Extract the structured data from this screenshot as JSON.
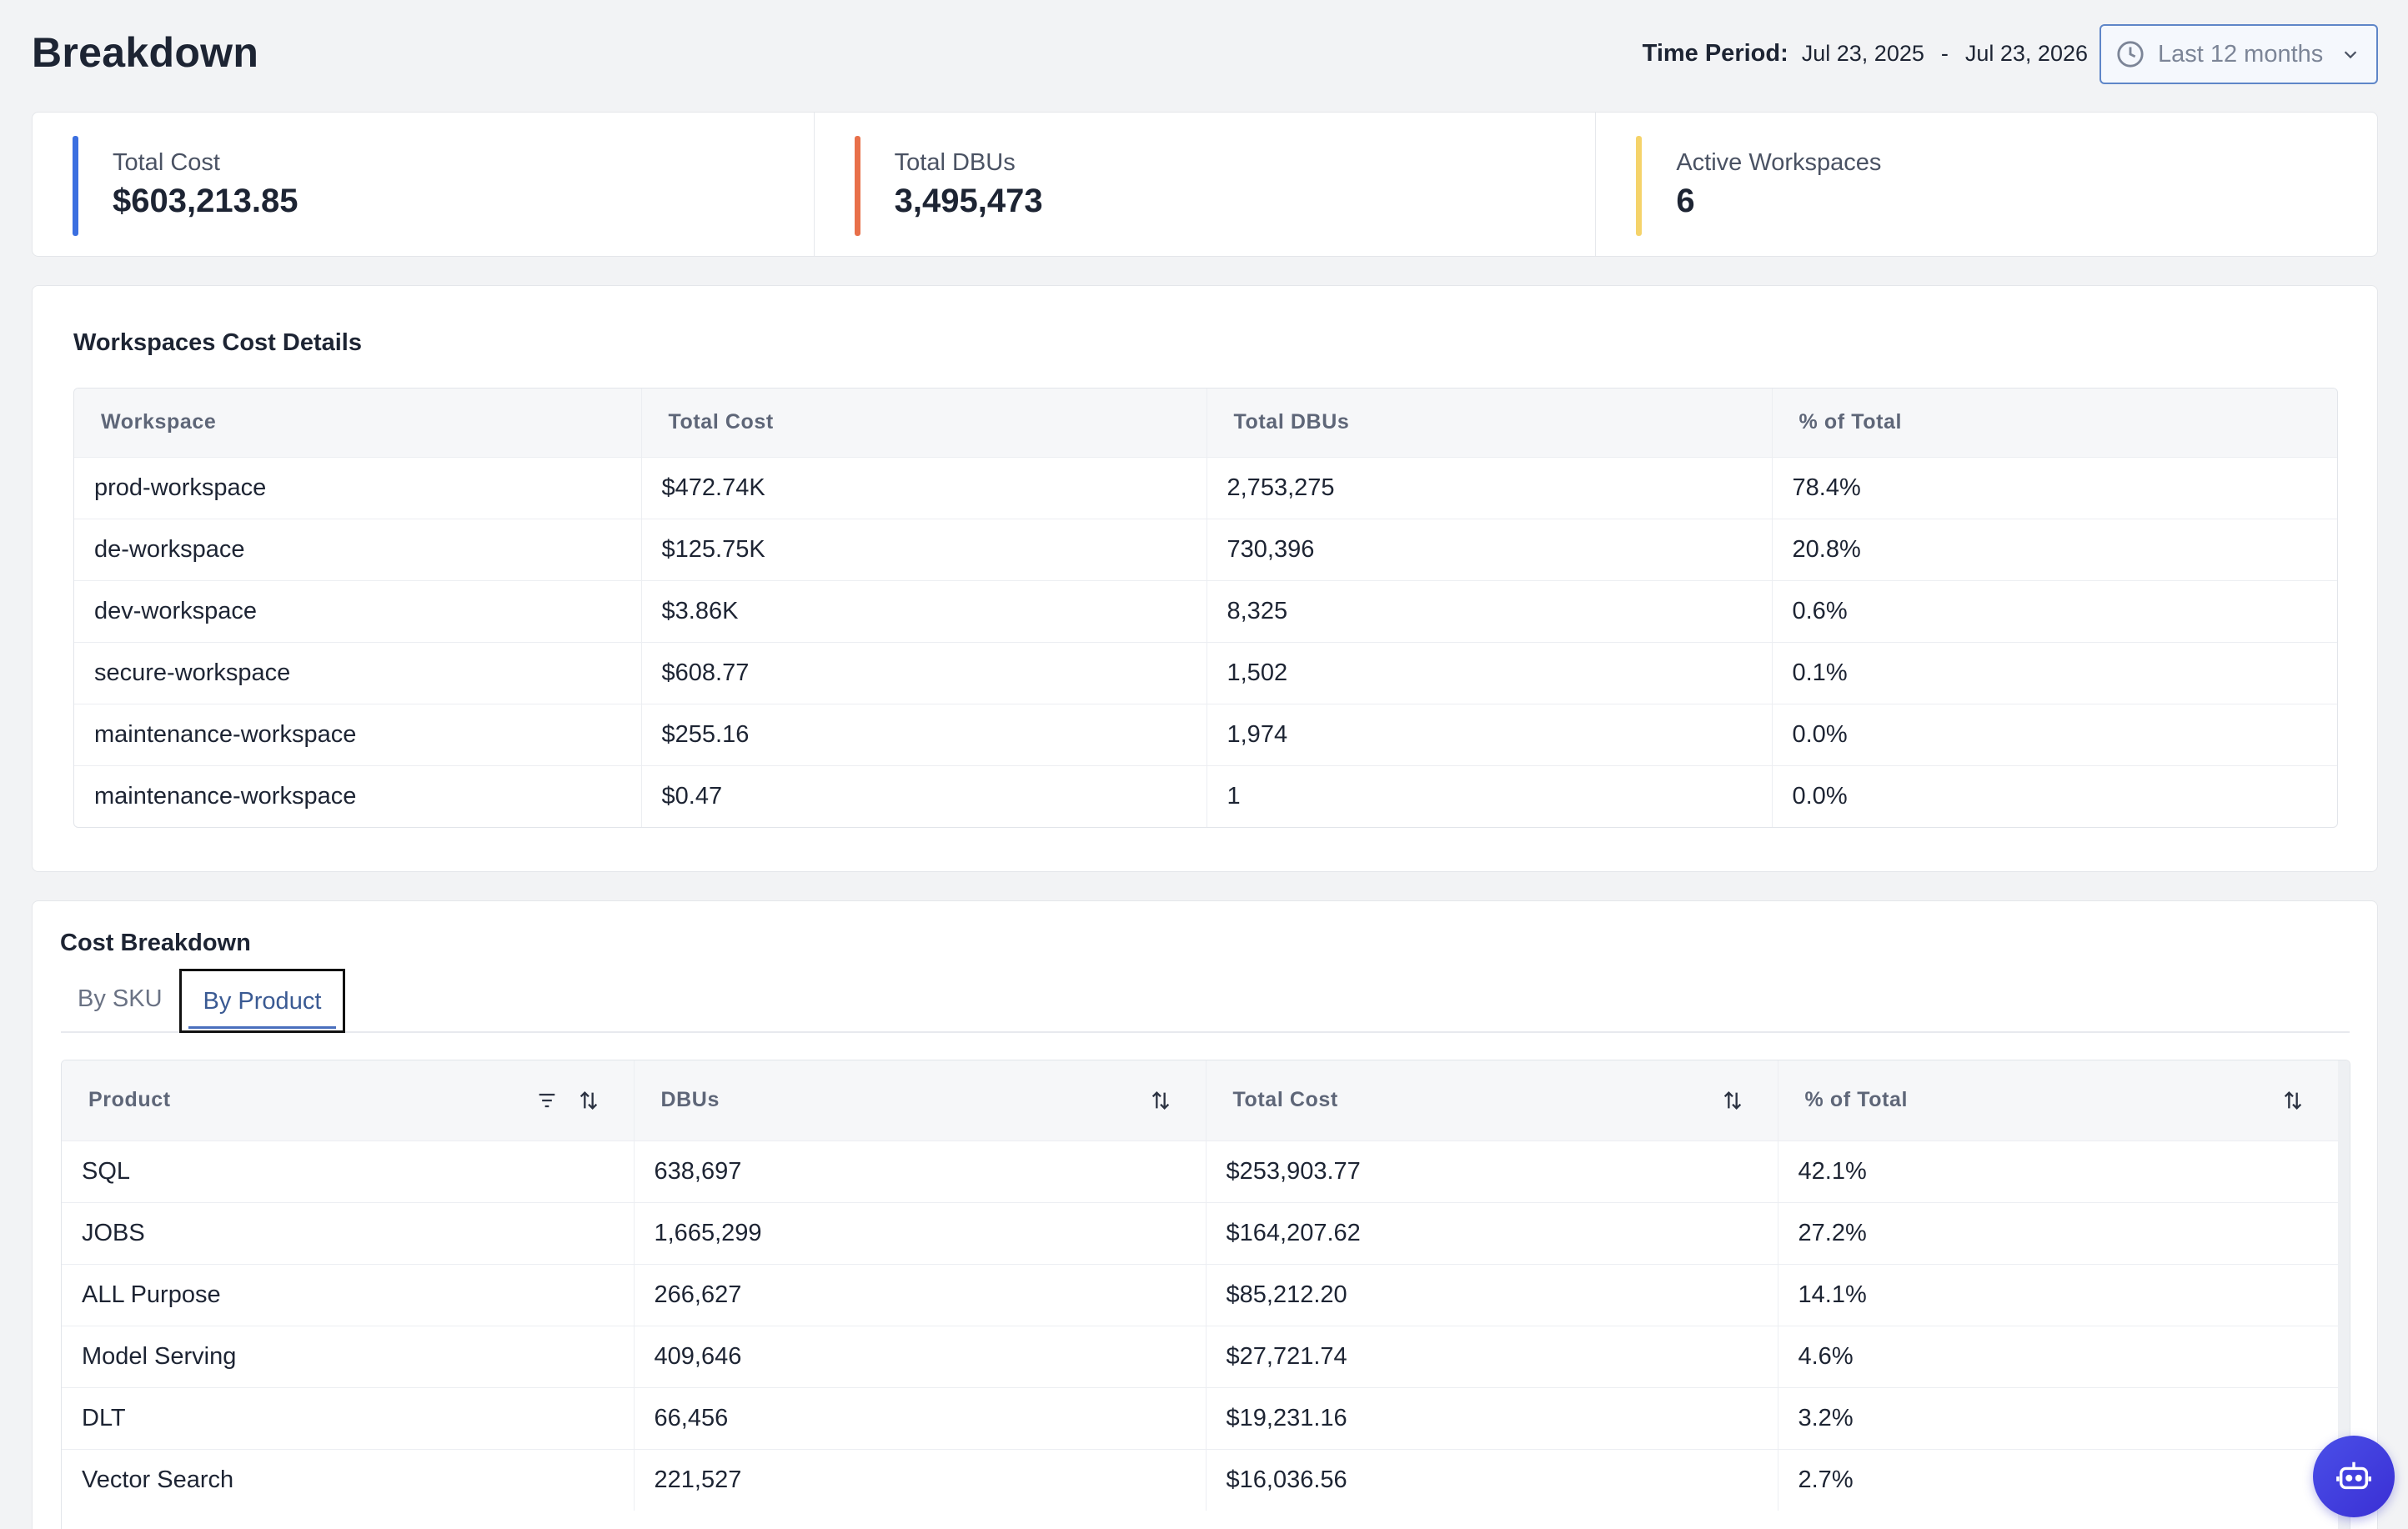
{
  "header": {
    "title": "Breakdown",
    "time_period_label": "Time Period:",
    "start_date": "Jul 23, 2025",
    "separator": "-",
    "end_date": "Jul 23, 2026",
    "range_value": "Last 12 months"
  },
  "kpis": [
    {
      "label": "Total Cost",
      "value": "$603,213.85",
      "color": "#3b6fe0"
    },
    {
      "label": "Total DBUs",
      "value": "3,495,473",
      "color": "#e8704a"
    },
    {
      "label": "Active Workspaces",
      "value": "6",
      "color": "#f5d36a"
    }
  ],
  "workspaces": {
    "title": "Workspaces Cost Details",
    "columns": [
      "Workspace",
      "Total Cost",
      "Total DBUs",
      "% of Total"
    ],
    "rows": [
      [
        "prod-workspace",
        "$472.74K",
        "2,753,275",
        "78.4%"
      ],
      [
        "de-workspace",
        "$125.75K",
        "730,396",
        "20.8%"
      ],
      [
        "dev-workspace",
        "$3.86K",
        "8,325",
        "0.6%"
      ],
      [
        "secure-workspace",
        "$608.77",
        "1,502",
        "0.1%"
      ],
      [
        "maintenance-workspace",
        "$255.16",
        "1,974",
        "0.0%"
      ],
      [
        "maintenance-workspace",
        "$0.47",
        "1",
        "0.0%"
      ]
    ]
  },
  "cost_breakdown": {
    "title": "Cost Breakdown",
    "tabs": [
      "By SKU",
      "By Product"
    ],
    "active_tab": "By Product",
    "columns": [
      "Product",
      "DBUs",
      "Total Cost",
      "% of Total"
    ],
    "rows": [
      [
        "SQL",
        "638,697",
        "$253,903.77",
        "42.1%"
      ],
      [
        "JOBS",
        "1,665,299",
        "$164,207.62",
        "27.2%"
      ],
      [
        "ALL Purpose",
        "266,627",
        "$85,212.20",
        "14.1%"
      ],
      [
        "Model Serving",
        "409,646",
        "$27,721.74",
        "4.6%"
      ],
      [
        "DLT",
        "66,456",
        "$19,231.16",
        "3.2%"
      ],
      [
        "Vector Search",
        "221,527",
        "$16,036.56",
        "2.7%"
      ]
    ]
  }
}
